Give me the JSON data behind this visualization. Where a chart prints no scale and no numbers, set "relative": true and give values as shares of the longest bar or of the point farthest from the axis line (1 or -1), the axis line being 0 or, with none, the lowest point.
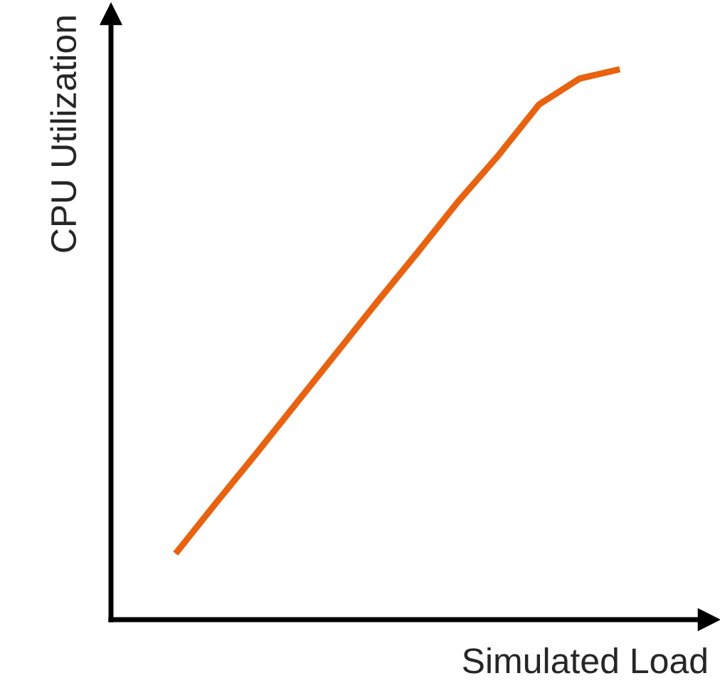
{
  "chart_data": {
    "type": "line",
    "relative": true,
    "xlabel": "Simulated Load",
    "ylabel": "CPU Utilization",
    "categories": [
      null,
      null,
      null,
      null,
      null,
      null,
      null,
      null,
      null,
      null,
      null,
      null
    ],
    "series": [
      {
        "color": "#e8620f",
        "values": [
          0.12,
          0.212,
          0.302,
          0.394,
          0.486,
          0.578,
          0.668,
          0.76,
          0.844,
          0.936,
          0.983,
          1
        ]
      }
    ],
    "line_style": "solid",
    "marker": "none",
    "tick_labels": false
  }
}
